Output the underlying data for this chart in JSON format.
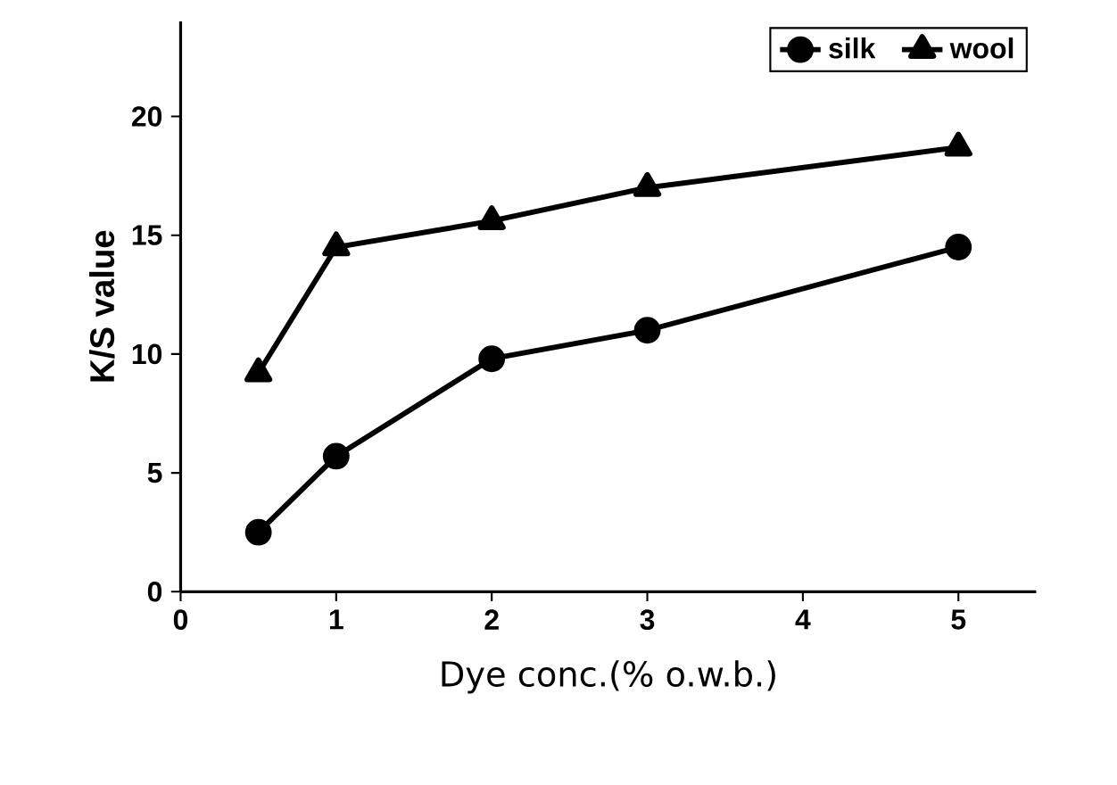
{
  "chart_data": {
    "type": "line",
    "xlabel": "Dye conc.(% o.w.b.)",
    "ylabel": "K/S value",
    "x": [
      0.5,
      1,
      2,
      3,
      5
    ],
    "series": [
      {
        "name": "silk",
        "color": "#000000",
        "marker": "circle",
        "values": [
          2.5,
          5.7,
          9.8,
          11,
          14.5
        ]
      },
      {
        "name": "wool",
        "color": "#000000",
        "marker": "triangle",
        "values": [
          9.2,
          14.5,
          15.6,
          17,
          18.7
        ]
      }
    ],
    "xlim": [
      0,
      5.5
    ],
    "ylim": [
      0,
      24
    ],
    "xticks": [
      0,
      1,
      2,
      3,
      4,
      5
    ],
    "yticks": [
      0,
      5,
      10,
      15,
      20
    ],
    "legend": "top right",
    "grid": false,
    "line_style": "solid"
  }
}
